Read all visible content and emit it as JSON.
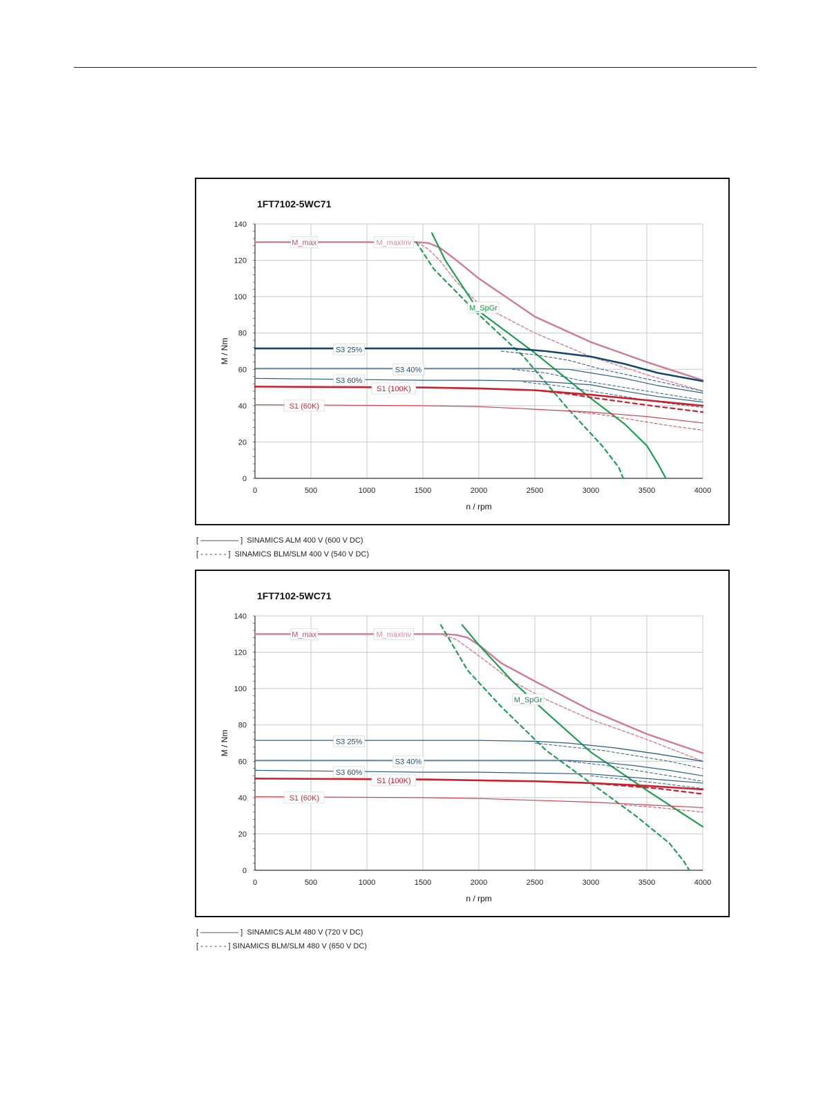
{
  "charts": [
    {
      "footnotes": [
        "[ ————— ]  SINAMICS ALM 400 V (600 V DC)",
        "[ - - - - - - ]  SINAMICS BLM/SLM 400 V (540 V DC)"
      ]
    },
    {
      "footnotes": [
        "[ ————— ]  SINAMICS ALM 480 V (720 V DC)",
        "[ - - - - - - ] SINAMICS BLM/SLM 480 V (650 V DC)"
      ]
    }
  ],
  "chart_data": [
    {
      "type": "line",
      "title": "1FT7102-5WC71",
      "xlabel": "n / rpm",
      "ylabel": "M / Nm",
      "xlim": [
        0,
        4000
      ],
      "ylim": [
        0,
        140
      ],
      "xticks": [
        0,
        500,
        1000,
        1500,
        2000,
        2500,
        3000,
        3500,
        4000
      ],
      "yticks": [
        0,
        20,
        40,
        60,
        80,
        100,
        120,
        140
      ],
      "grid": true,
      "labels": [
        {
          "text": "M_max",
          "x": 440,
          "y": 130,
          "color": "#c0506a"
        },
        {
          "text": "M_maxInv",
          "x": 1240,
          "y": 130,
          "color": "#d68aa0"
        },
        {
          "text": "M_SpGr",
          "x": 2040,
          "y": 94,
          "color": "#119944"
        },
        {
          "text": "S3 25%",
          "x": 840,
          "y": 71,
          "color": "#1a4f7a"
        },
        {
          "text": "S3 40%",
          "x": 1370,
          "y": 60,
          "color": "#1a4f7a"
        },
        {
          "text": "S3 60%",
          "x": 840,
          "y": 54,
          "color": "#1a4f7a"
        },
        {
          "text": "S1 (100K)",
          "x": 1240,
          "y": 49.5,
          "color": "#cc1f2e"
        },
        {
          "text": "S1 (60K)",
          "x": 440,
          "y": 40,
          "color": "#cc2e3a"
        }
      ],
      "series": [
        {
          "style": "solid",
          "color": "#d07a92",
          "width": 2.4,
          "x": [
            0,
            1450,
            1550,
            1650,
            1800,
            2000,
            2500,
            3000,
            3500,
            4000
          ],
          "y": [
            130,
            130,
            129.5,
            127,
            120,
            110,
            89,
            75,
            64,
            54
          ]
        },
        {
          "style": "dashed",
          "color": "#d98aa0",
          "width": 1.6,
          "x": [
            1450,
            1550,
            1650,
            1800,
            2000,
            2500,
            3000,
            3500,
            4000
          ],
          "y": [
            130,
            126,
            120,
            108,
            96,
            80,
            67,
            57,
            48
          ]
        },
        {
          "style": "solid",
          "color": "#1f9e50",
          "width": 2.2,
          "x": [
            1580,
            1700,
            2000,
            2500,
            3000,
            3300,
            3500,
            3600,
            3670
          ],
          "y": [
            135,
            120,
            92,
            69,
            44,
            30,
            18,
            8,
            0
          ]
        },
        {
          "style": "dashed",
          "color": "#1f9e50",
          "width": 2.2,
          "x": [
            1440,
            1600,
            2000,
            2400,
            2800,
            3100,
            3250,
            3290
          ],
          "y": [
            130,
            115,
            90,
            67,
            38,
            18,
            6,
            0
          ]
        },
        {
          "style": "solid",
          "color": "#16466e",
          "width": 2.6,
          "x": [
            0,
            2300,
            2600,
            3000,
            3300,
            3600,
            4000
          ],
          "y": [
            71.5,
            71.5,
            70,
            67,
            63,
            58,
            53.5
          ]
        },
        {
          "style": "dashed",
          "color": "#1e4f78",
          "width": 1.0,
          "x": [
            2200,
            2500,
            2800,
            3100,
            3400,
            3700,
            4000
          ],
          "y": [
            70,
            68,
            65,
            60,
            56,
            52,
            48
          ]
        },
        {
          "style": "solid",
          "color": "#2b5f85",
          "width": 1.2,
          "x": [
            0,
            2500,
            2800,
            3000,
            3300,
            3600,
            4000
          ],
          "y": [
            60.5,
            60.5,
            60,
            58,
            55,
            51,
            47
          ]
        },
        {
          "style": "dashed",
          "color": "#2b5f85",
          "width": 1.0,
          "x": [
            2300,
            2600,
            2900,
            3200,
            3500,
            3800,
            4000
          ],
          "y": [
            60,
            58,
            54,
            51,
            48,
            45,
            43
          ]
        },
        {
          "style": "solid",
          "color": "#2b5f85",
          "width": 1.2,
          "x": [
            0,
            1500,
            2000,
            2500,
            3000,
            3300,
            3600,
            4000
          ],
          "y": [
            55,
            54,
            54,
            53.5,
            51.5,
            48,
            45,
            42
          ]
        },
        {
          "style": "dashed",
          "color": "#2b5f85",
          "width": 1.0,
          "x": [
            2400,
            2700,
            3000,
            3300,
            3600,
            4000
          ],
          "y": [
            53,
            51,
            48,
            45,
            42,
            39
          ]
        },
        {
          "style": "solid",
          "color": "#cc1f2e",
          "width": 2.6,
          "x": [
            0,
            1500,
            2000,
            2500,
            3000,
            3500,
            4000
          ],
          "y": [
            50.5,
            50,
            49.5,
            48.5,
            46,
            43,
            40
          ]
        },
        {
          "style": "dashed",
          "color": "#cc1f2e",
          "width": 2.2,
          "x": [
            2500,
            2800,
            3000,
            3300,
            3600,
            4000
          ],
          "y": [
            48.5,
            46.5,
            44.5,
            42,
            39.5,
            36.5
          ]
        },
        {
          "style": "solid",
          "color": "#d4404d",
          "width": 1.2,
          "x": [
            0,
            1500,
            2000,
            2500,
            3000,
            3500,
            4000
          ],
          "y": [
            40.5,
            40,
            39.5,
            38,
            36.5,
            34,
            30.5
          ]
        },
        {
          "style": "dashed",
          "color": "#d4404d",
          "width": 1.0,
          "x": [
            2800,
            3100,
            3400,
            3700,
            4000
          ],
          "y": [
            37,
            35,
            32,
            29,
            26.5
          ]
        }
      ]
    },
    {
      "type": "line",
      "title": "1FT7102-5WC71",
      "xlabel": "n / rpm",
      "ylabel": "M / Nm",
      "xlim": [
        0,
        4000
      ],
      "ylim": [
        0,
        140
      ],
      "xticks": [
        0,
        500,
        1000,
        1500,
        2000,
        2500,
        3000,
        3500,
        4000
      ],
      "yticks": [
        0,
        20,
        40,
        60,
        80,
        100,
        120,
        140
      ],
      "grid": true,
      "labels": [
        {
          "text": "M_max",
          "x": 440,
          "y": 130,
          "color": "#c0506a"
        },
        {
          "text": "M_maxInv",
          "x": 1240,
          "y": 130,
          "color": "#d68aa0"
        },
        {
          "text": "M_SpGr",
          "x": 2440,
          "y": 94,
          "color": "#119944"
        },
        {
          "text": "S3 25%",
          "x": 840,
          "y": 71,
          "color": "#1a4f7a"
        },
        {
          "text": "S3 40%",
          "x": 1370,
          "y": 60,
          "color": "#1a4f7a"
        },
        {
          "text": "S3 60%",
          "x": 840,
          "y": 54,
          "color": "#1a4f7a"
        },
        {
          "text": "S1 (100K)",
          "x": 1240,
          "y": 49.5,
          "color": "#cc1f2e"
        },
        {
          "text": "S1 (60K)",
          "x": 440,
          "y": 40,
          "color": "#cc2e3a"
        }
      ],
      "series": [
        {
          "style": "solid",
          "color": "#d07a92",
          "width": 2.4,
          "x": [
            0,
            1700,
            1800,
            1900,
            2000,
            2200,
            2500,
            3000,
            3500,
            4000
          ],
          "y": [
            130,
            130,
            129.5,
            128,
            124,
            114,
            104,
            88,
            75,
            64.5
          ]
        },
        {
          "style": "dashed",
          "color": "#d98aa0",
          "width": 1.6,
          "x": [
            1650,
            1800,
            2000,
            2300,
            2600,
            3000,
            3500,
            4000
          ],
          "y": [
            130,
            127,
            118,
            104,
            94,
            83,
            72,
            60
          ]
        },
        {
          "style": "solid",
          "color": "#1f9e50",
          "width": 2.2,
          "x": [
            1850,
            2000,
            2300,
            2600,
            3000,
            3500,
            4000
          ],
          "y": [
            135,
            124,
            104,
            87,
            65,
            44,
            24
          ]
        },
        {
          "style": "dashed",
          "color": "#1f9e50",
          "width": 2.2,
          "x": [
            1660,
            1900,
            2200,
            2600,
            3000,
            3400,
            3700,
            3830,
            3880
          ],
          "y": [
            135,
            110,
            90,
            66,
            48,
            30,
            15,
            5,
            0
          ]
        },
        {
          "style": "solid",
          "color": "#2b5f85",
          "width": 1.3,
          "x": [
            0,
            2000,
            2500,
            2800,
            3200,
            3600,
            4000
          ],
          "y": [
            71.5,
            71.5,
            71,
            70,
            67.5,
            64,
            60
          ]
        },
        {
          "style": "dashed",
          "color": "#2b5f85",
          "width": 1.0,
          "x": [
            2500,
            2800,
            3100,
            3400,
            3700,
            4000
          ],
          "y": [
            70,
            68,
            66,
            63,
            60,
            56
          ]
        },
        {
          "style": "solid",
          "color": "#2b5f85",
          "width": 1.2,
          "x": [
            0,
            2800,
            3100,
            3400,
            3700,
            4000
          ],
          "y": [
            60.5,
            60.5,
            59.5,
            57.5,
            55,
            52
          ]
        },
        {
          "style": "dashed",
          "color": "#2b5f85",
          "width": 1.0,
          "x": [
            2800,
            3100,
            3400,
            3700,
            4000
          ],
          "y": [
            60,
            58,
            55,
            52,
            49
          ]
        },
        {
          "style": "solid",
          "color": "#2b5f85",
          "width": 1.2,
          "x": [
            0,
            1500,
            2000,
            2500,
            3000,
            3300,
            3600,
            4000
          ],
          "y": [
            55,
            54,
            54,
            53.5,
            53,
            51.5,
            50,
            48
          ]
        },
        {
          "style": "dashed",
          "color": "#2b5f85",
          "width": 1.0,
          "x": [
            3000,
            3300,
            3600,
            4000
          ],
          "y": [
            52,
            50,
            48,
            45
          ]
        },
        {
          "style": "solid",
          "color": "#cc1f2e",
          "width": 2.6,
          "x": [
            0,
            1500,
            2000,
            2500,
            3000,
            3500,
            4000
          ],
          "y": [
            50.5,
            50,
            49.5,
            49,
            48,
            46.5,
            44.5
          ]
        },
        {
          "style": "dashed",
          "color": "#cc1f2e",
          "width": 2.2,
          "x": [
            3000,
            3300,
            3600,
            4000
          ],
          "y": [
            48,
            46.5,
            45,
            42
          ]
        },
        {
          "style": "solid",
          "color": "#d4404d",
          "width": 1.2,
          "x": [
            0,
            1500,
            2000,
            2500,
            3000,
            3500,
            4000
          ],
          "y": [
            40.5,
            40,
            39.5,
            38.5,
            37.5,
            36,
            34.5
          ]
        },
        {
          "style": "dashed",
          "color": "#d4404d",
          "width": 1.0,
          "x": [
            3300,
            3600,
            4000
          ],
          "y": [
            36,
            34.5,
            32
          ]
        }
      ]
    }
  ]
}
